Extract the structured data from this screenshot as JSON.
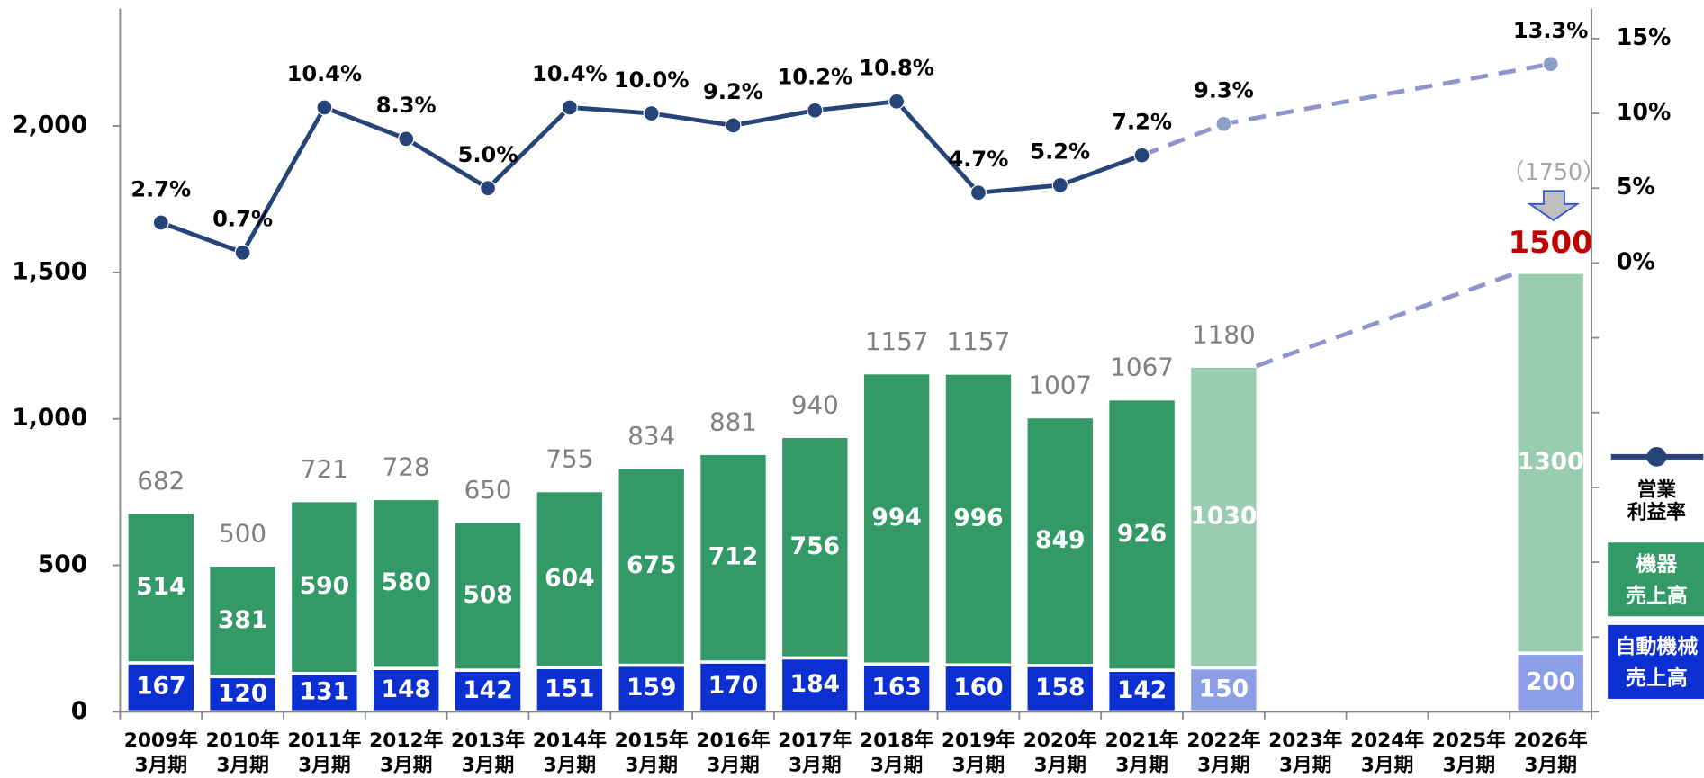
{
  "chart_data": {
    "type": "stacked-bar-line",
    "categories": [
      [
        "2009年",
        "3月期"
      ],
      [
        "2010年",
        "3月期"
      ],
      [
        "2011年",
        "3月期"
      ],
      [
        "2012年",
        "3月期"
      ],
      [
        "2013年",
        "3月期"
      ],
      [
        "2014年",
        "3月期"
      ],
      [
        "2015年",
        "3月期"
      ],
      [
        "2016年",
        "3月期"
      ],
      [
        "2017年",
        "3月期"
      ],
      [
        "2018年",
        "3月期"
      ],
      [
        "2019年",
        "3月期"
      ],
      [
        "2020年",
        "3月期"
      ],
      [
        "2021年",
        "3月期"
      ],
      [
        "2022年",
        "3月期"
      ],
      [
        "2023年",
        "3月期"
      ],
      [
        "2024年",
        "3月期"
      ],
      [
        "2025年",
        "3月期"
      ],
      [
        "2026年",
        "3月期"
      ]
    ],
    "series": [
      {
        "name": [
          "自動機械",
          "売上高"
        ],
        "type": "bar",
        "color": "#0b2fd0",
        "values": [
          167,
          120,
          131,
          148,
          142,
          151,
          159,
          170,
          184,
          163,
          160,
          158,
          142,
          150,
          null,
          null,
          null,
          200
        ],
        "colors": [
          "#0b2fd0",
          "#0b2fd0",
          "#0b2fd0",
          "#0b2fd0",
          "#0b2fd0",
          "#0b2fd0",
          "#0b2fd0",
          "#0b2fd0",
          "#0b2fd0",
          "#0b2fd0",
          "#0b2fd0",
          "#0b2fd0",
          "#0b2fd0",
          "#8c9fe6",
          null,
          null,
          null,
          "#8c9fe6"
        ]
      },
      {
        "name": [
          "機器",
          "売上高"
        ],
        "type": "bar",
        "color": "#339966",
        "values": [
          514,
          381,
          590,
          580,
          508,
          604,
          675,
          712,
          756,
          994,
          996,
          849,
          926,
          1030,
          null,
          null,
          null,
          1300
        ],
        "colors": [
          "#339966",
          "#339966",
          "#339966",
          "#339966",
          "#339966",
          "#339966",
          "#339966",
          "#339966",
          "#339966",
          "#339966",
          "#339966",
          "#339966",
          "#339966",
          "#9accb2",
          null,
          null,
          null,
          "#9accb2"
        ]
      },
      {
        "name": [
          "営業",
          "利益率"
        ],
        "type": "line",
        "axis": "y2",
        "color": "#264478",
        "values": [
          2.7,
          0.7,
          10.4,
          8.3,
          5.0,
          10.4,
          10.0,
          9.2,
          10.2,
          10.8,
          4.7,
          5.2,
          7.2,
          9.3,
          null,
          null,
          null,
          13.3
        ],
        "value_labels": [
          "2.7%",
          "0.7%",
          "10.4%",
          "8.3%",
          "5.0%",
          "10.4%",
          "10.0%",
          "9.2%",
          "10.2%",
          "10.8%",
          "4.7%",
          "5.2%",
          "7.2%",
          "9.3%",
          null,
          null,
          null,
          "13.3%"
        ],
        "colors": [
          "#264478",
          "#264478",
          "#264478",
          "#264478",
          "#264478",
          "#264478",
          "#264478",
          "#264478",
          "#264478",
          "#264478",
          "#264478",
          "#264478",
          "#264478",
          "#8fa0c8",
          null,
          null,
          null,
          "#8fa0c8"
        ]
      }
    ],
    "totals": [
      682,
      500,
      721,
      728,
      650,
      755,
      834,
      881,
      940,
      1157,
      1157,
      1007,
      1067,
      1180,
      null,
      null,
      null,
      1500
    ],
    "totals_colors": [
      "#808080",
      "#808080",
      "#808080",
      "#808080",
      "#808080",
      "#808080",
      "#808080",
      "#808080",
      "#808080",
      "#808080",
      "#808080",
      "#808080",
      "#808080",
      "#808080",
      null,
      null,
      null,
      "#c00000"
    ],
    "annotations": [
      {
        "text": "（1750）"
      }
    ],
    "ylim": [
      0,
      2400
    ],
    "yticks": [
      0,
      500,
      {
        "value": 1000,
        "label": "1,000"
      },
      {
        "value": 1500,
        "label": "1,500"
      },
      {
        "value": 2000,
        "label": "2,000"
      }
    ],
    "y2lim": [
      -30,
      17
    ],
    "y2ticks": [
      {
        "value": 0,
        "label": "0%"
      },
      {
        "value": 5,
        "label": "5%"
      },
      {
        "value": 10,
        "label": "10%"
      },
      {
        "value": 15,
        "label": "15%"
      }
    ],
    "y2minor_ticks": [
      -5,
      -10,
      -15,
      -20,
      -25,
      -30
    ]
  }
}
